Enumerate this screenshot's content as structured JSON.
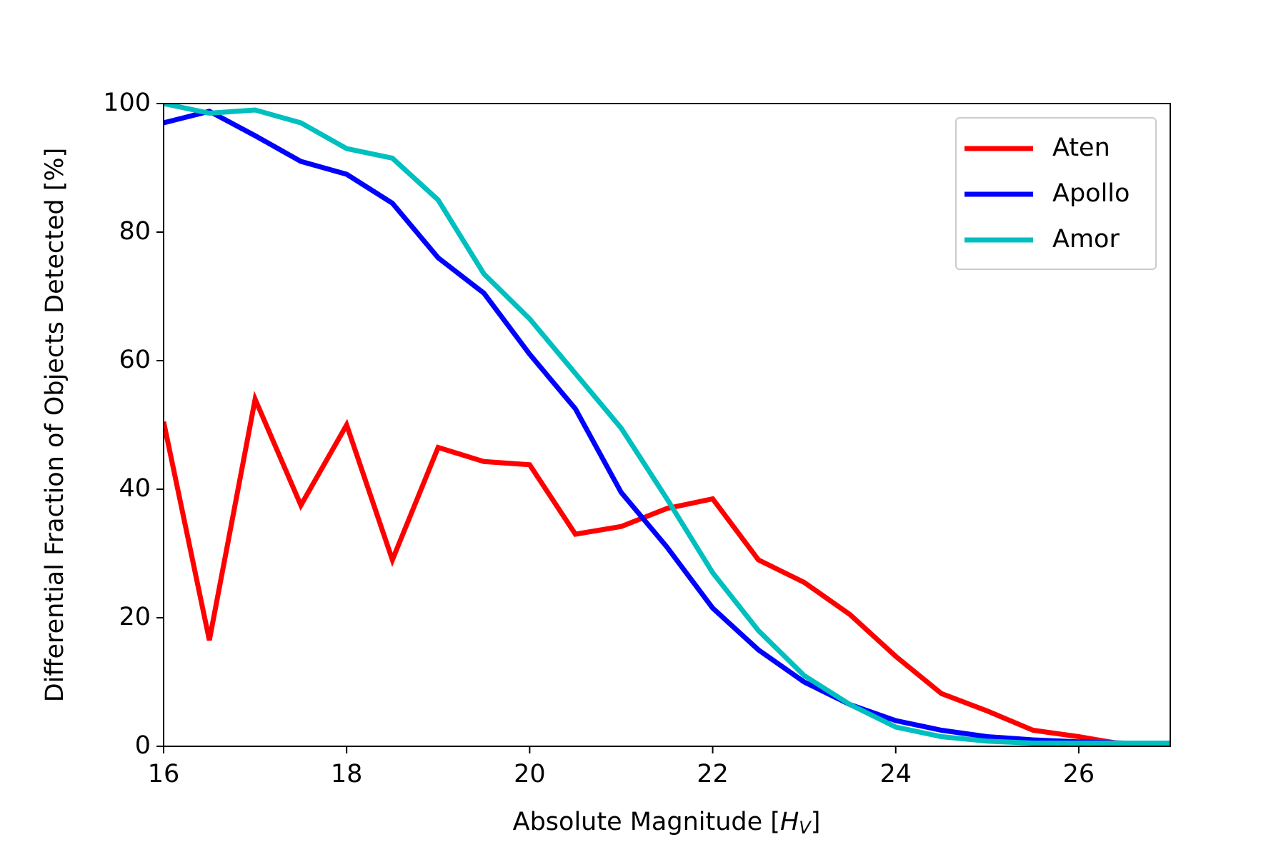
{
  "chart_data": {
    "type": "line",
    "xlabel": [
      "Absolute Magnitude [",
      "H",
      "V",
      "]"
    ],
    "ylabel": "Differential Fraction of Objects Detected [%]",
    "x": [
      16,
      16.5,
      17,
      17.5,
      18,
      18.5,
      19,
      19.5,
      20,
      20.5,
      21,
      21.5,
      22,
      22.5,
      23,
      23.5,
      24,
      24.5,
      25,
      25.5,
      26,
      26.5,
      27
    ],
    "series": [
      {
        "name": "Aten",
        "color": "#ff0000",
        "values": [
          50.5,
          16.5,
          54,
          37.5,
          50,
          29,
          46.5,
          44.3,
          43.8,
          33,
          34.2,
          37,
          38.5,
          29,
          25.5,
          20.5,
          14,
          8.2,
          5.5,
          2.5,
          1.5,
          0.3,
          0.3
        ]
      },
      {
        "name": "Apollo",
        "color": "#0000ff",
        "values": [
          97,
          98.8,
          95,
          91,
          89,
          84.5,
          76,
          70.5,
          61,
          52.5,
          39.5,
          31,
          21.5,
          15,
          10,
          6.5,
          4,
          2.5,
          1.5,
          1,
          0.7,
          0.5,
          0.5
        ]
      },
      {
        "name": "Amor",
        "color": "#00bfbf",
        "values": [
          100,
          98.5,
          99,
          97,
          93,
          91.5,
          85,
          73.5,
          66.5,
          58,
          49.5,
          38.5,
          27,
          18,
          11,
          6.5,
          3,
          1.5,
          0.8,
          0.5,
          0.5,
          0.5,
          0.5
        ]
      }
    ],
    "xlim": [
      16,
      27
    ],
    "xticks": [
      16,
      18,
      20,
      22,
      24,
      26
    ],
    "ylim": [
      0,
      100
    ],
    "yticks": [
      0,
      20,
      40,
      60,
      80,
      100
    ],
    "legend": "upper right"
  }
}
